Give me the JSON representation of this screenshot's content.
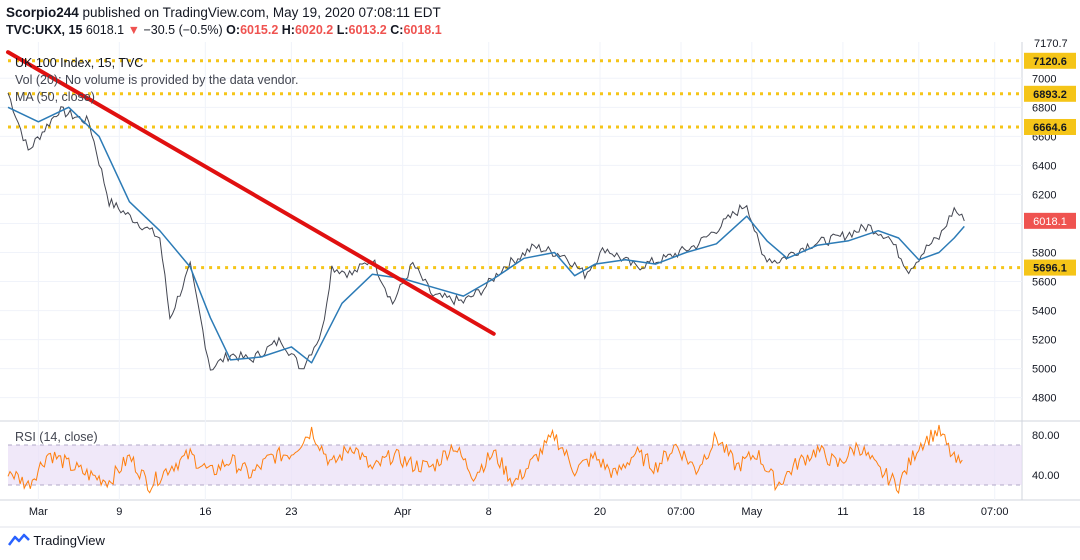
{
  "header": {
    "author": "Scorpio244",
    "published_text": "published on TradingView.com, May 19, 2020 07:08:11 EDT",
    "symbol": "TVC:UKX, 15",
    "last": "6018.1",
    "change_arrow": "▼",
    "change": "−30.5 (−0.5%)",
    "o_label": "O:",
    "o_value": "6015.2",
    "h_label": "H:",
    "h_value": "6020.2",
    "l_label": "L:",
    "l_value": "6013.2",
    "c_label": "C:",
    "c_value": "6018.1"
  },
  "legend": {
    "title": "UK 100 Index, 15, TVC",
    "vol": "Vol (20): No volume is provided by the data vendor.",
    "ma": "MA (50, close)"
  },
  "rsi_label": "RSI (14, close)",
  "brand": "TradingView",
  "colors": {
    "price": "#434651",
    "ma": "#2c7bb6",
    "trendline": "#e01010",
    "levels": "#f5c518",
    "rsi": "#ff7f0e",
    "rsi_band": "#e9def7",
    "grid": "#f0f3fa"
  },
  "chart_data": {
    "type": "line",
    "title": "UK 100 Index, 15, TVC",
    "x_ticks": [
      "Mar",
      "9",
      "16",
      "23",
      "Apr",
      "8",
      "20",
      "07:00",
      "May",
      "11",
      "18",
      "07:00"
    ],
    "y_ticks": [
      4800,
      5000,
      5200,
      5400,
      5600,
      5800,
      6000,
      6200,
      6400,
      6600,
      6800,
      7000
    ],
    "ylim": [
      4660,
      7250
    ],
    "top_partial_label": "7170.7",
    "price_path": [
      [
        0,
        6900
      ],
      [
        0.02,
        6500
      ],
      [
        0.05,
        6780
      ],
      [
        0.08,
        6700
      ],
      [
        0.1,
        6150
      ],
      [
        0.13,
        6000
      ],
      [
        0.15,
        5900
      ],
      [
        0.16,
        5350
      ],
      [
        0.18,
        5700
      ],
      [
        0.2,
        5000
      ],
      [
        0.22,
        5100
      ],
      [
        0.24,
        5060
      ],
      [
        0.27,
        5200
      ],
      [
        0.29,
        5000
      ],
      [
        0.31,
        5250
      ],
      [
        0.32,
        5700
      ],
      [
        0.34,
        5650
      ],
      [
        0.36,
        5760
      ],
      [
        0.38,
        5450
      ],
      [
        0.4,
        5720
      ],
      [
        0.42,
        5500
      ],
      [
        0.45,
        5460
      ],
      [
        0.47,
        5550
      ],
      [
        0.49,
        5700
      ],
      [
        0.52,
        5840
      ],
      [
        0.55,
        5780
      ],
      [
        0.57,
        5650
      ],
      [
        0.59,
        5830
      ],
      [
        0.62,
        5700
      ],
      [
        0.65,
        5760
      ],
      [
        0.68,
        5850
      ],
      [
        0.7,
        5960
      ],
      [
        0.73,
        6140
      ],
      [
        0.745,
        5780
      ],
      [
        0.76,
        5740
      ],
      [
        0.79,
        5850
      ],
      [
        0.82,
        5900
      ],
      [
        0.85,
        5980
      ],
      [
        0.87,
        5910
      ],
      [
        0.89,
        5680
      ],
      [
        0.91,
        5850
      ],
      [
        0.92,
        5900
      ],
      [
        0.935,
        6100
      ],
      [
        0.945,
        6018
      ]
    ],
    "ma_path": [
      [
        0,
        6800
      ],
      [
        0.03,
        6700
      ],
      [
        0.06,
        6800
      ],
      [
        0.09,
        6600
      ],
      [
        0.12,
        6150
      ],
      [
        0.15,
        5950
      ],
      [
        0.18,
        5700
      ],
      [
        0.2,
        5350
      ],
      [
        0.22,
        5060
      ],
      [
        0.25,
        5080
      ],
      [
        0.28,
        5150
      ],
      [
        0.3,
        5040
      ],
      [
        0.33,
        5450
      ],
      [
        0.36,
        5650
      ],
      [
        0.39,
        5620
      ],
      [
        0.42,
        5560
      ],
      [
        0.45,
        5500
      ],
      [
        0.48,
        5620
      ],
      [
        0.51,
        5760
      ],
      [
        0.54,
        5800
      ],
      [
        0.56,
        5640
      ],
      [
        0.58,
        5720
      ],
      [
        0.61,
        5750
      ],
      [
        0.64,
        5720
      ],
      [
        0.67,
        5800
      ],
      [
        0.7,
        5860
      ],
      [
        0.73,
        6050
      ],
      [
        0.75,
        5880
      ],
      [
        0.77,
        5760
      ],
      [
        0.8,
        5850
      ],
      [
        0.83,
        5880
      ],
      [
        0.86,
        5950
      ],
      [
        0.88,
        5900
      ],
      [
        0.9,
        5750
      ],
      [
        0.92,
        5800
      ],
      [
        0.935,
        5900
      ],
      [
        0.945,
        5980
      ]
    ],
    "trendline": {
      "from": [
        0,
        7180
      ],
      "to": [
        0.48,
        5240
      ]
    },
    "levels": [
      {
        "value": 7120.6,
        "label": "7120.6",
        "x_from": 0
      },
      {
        "value": 6893.2,
        "label": "6893.2",
        "x_from": 0
      },
      {
        "value": 6664.6,
        "label": "6664.6",
        "x_from": 0
      },
      {
        "value": 5696.1,
        "label": "5696.1",
        "x_from": 0.175
      }
    ],
    "rsi": {
      "y_ticks": [
        "80.00",
        "40.00"
      ],
      "band": [
        30,
        70
      ],
      "ylim": [
        15,
        92
      ],
      "path": [
        [
          0,
          45
        ],
        [
          0.02,
          30
        ],
        [
          0.04,
          62
        ],
        [
          0.06,
          50
        ],
        [
          0.08,
          40
        ],
        [
          0.1,
          34
        ],
        [
          0.12,
          58
        ],
        [
          0.14,
          30
        ],
        [
          0.16,
          48
        ],
        [
          0.18,
          60
        ],
        [
          0.2,
          42
        ],
        [
          0.22,
          55
        ],
        [
          0.24,
          40
        ],
        [
          0.26,
          58
        ],
        [
          0.28,
          62
        ],
        [
          0.3,
          85
        ],
        [
          0.32,
          50
        ],
        [
          0.34,
          70
        ],
        [
          0.36,
          45
        ],
        [
          0.38,
          60
        ],
        [
          0.4,
          50
        ],
        [
          0.42,
          48
        ],
        [
          0.44,
          70
        ],
        [
          0.46,
          40
        ],
        [
          0.48,
          62
        ],
        [
          0.5,
          32
        ],
        [
          0.52,
          55
        ],
        [
          0.54,
          80
        ],
        [
          0.56,
          45
        ],
        [
          0.58,
          58
        ],
        [
          0.6,
          40
        ],
        [
          0.62,
          62
        ],
        [
          0.64,
          48
        ],
        [
          0.66,
          70
        ],
        [
          0.68,
          45
        ],
        [
          0.7,
          78
        ],
        [
          0.72,
          48
        ],
        [
          0.74,
          62
        ],
        [
          0.76,
          30
        ],
        [
          0.78,
          52
        ],
        [
          0.8,
          65
        ],
        [
          0.82,
          50
        ],
        [
          0.84,
          70
        ],
        [
          0.86,
          45
        ],
        [
          0.88,
          30
        ],
        [
          0.9,
          70
        ],
        [
          0.92,
          85
        ],
        [
          0.935,
          55
        ],
        [
          0.945,
          48
        ]
      ]
    }
  }
}
